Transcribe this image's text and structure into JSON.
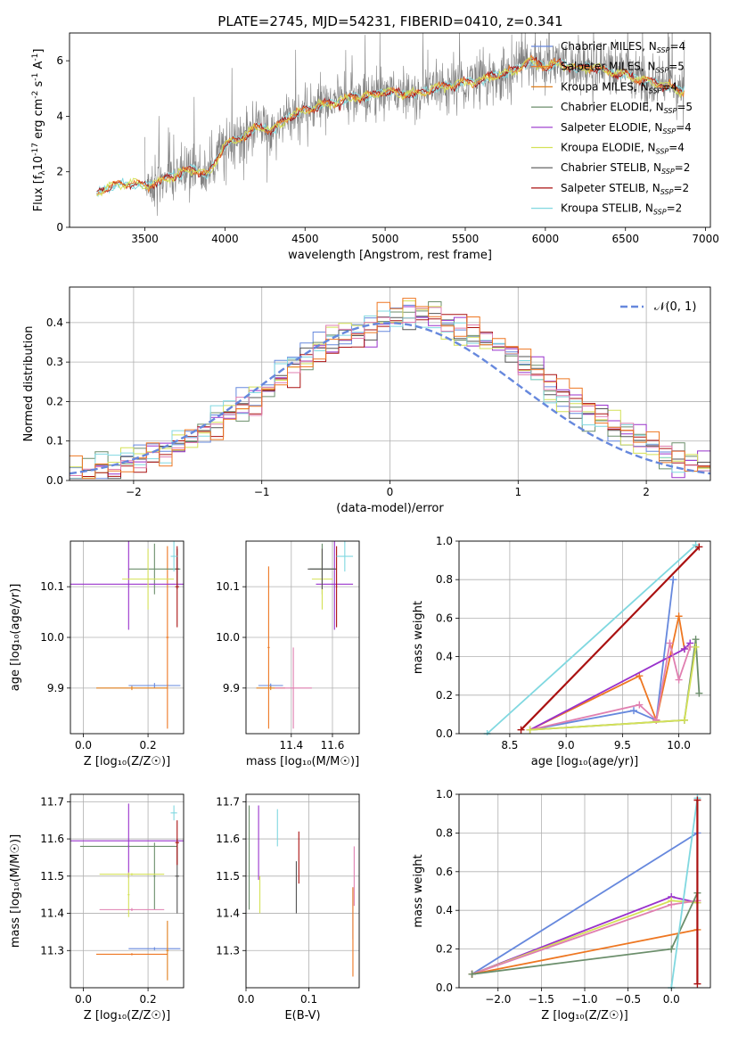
{
  "figure_title": "PLATE=2745, MJD=54231, FIBERID=0410, z=0.341",
  "series": [
    {
      "name": "Chabrier MILES",
      "color": "#6688dd",
      "n_ssp": "4"
    },
    {
      "name": "Salpeter MILES",
      "color": "#ee7722",
      "n_ssp": "5"
    },
    {
      "name": "Kroupa MILES",
      "color": "#e07f1c",
      "n_ssp": "4"
    },
    {
      "name": "Chabrier ELODIE",
      "color": "#6b8e6b",
      "n_ssp": "5"
    },
    {
      "name": "Salpeter ELODIE",
      "color": "#9932cc",
      "n_ssp": "4"
    },
    {
      "name": "Kroupa ELODIE",
      "color": "#d4e157",
      "n_ssp": "4"
    },
    {
      "name": "Chabrier STELIB",
      "color": "#555555",
      "n_ssp": "2"
    },
    {
      "name": "Salpeter STELIB",
      "color": "#aa1111",
      "n_ssp": "2"
    },
    {
      "name": "Kroupa STELIB",
      "color": "#80d8e0",
      "n_ssp": "2"
    }
  ],
  "chart_data": [
    {
      "id": "spectrum",
      "type": "line",
      "title": "PLATE=2745, MJD=54231, FIBERID=0410, z=0.341",
      "xlabel": "wavelength [Angstrom, rest frame]",
      "ylabel_main": "Flux [f",
      "ylabel_sub": "λ",
      "ylabel_tail": "10",
      "ylabel_sup1": "-17",
      "ylabel_mid": " erg cm",
      "ylabel_sup2": "-2",
      "ylabel_mid2": " s",
      "ylabel_sup3": "-1",
      "ylabel_mid3": " A",
      "ylabel_sup4": "-1",
      "ylabel_end": "]",
      "xlim": [
        3030,
        7030
      ],
      "ylim": [
        0,
        7
      ],
      "xticks": [
        3500,
        4000,
        4500,
        5000,
        5500,
        6000,
        6500,
        7000
      ],
      "yticks": [
        0,
        2,
        4,
        6
      ],
      "legend": "top-right",
      "legend_entry_prefix": "N",
      "legend_entry_sub": "SSP",
      "continuum": [
        [
          3200,
          1.2
        ],
        [
          3250,
          1.4
        ],
        [
          3300,
          1.5
        ],
        [
          3400,
          1.6
        ],
        [
          3500,
          1.5
        ],
        [
          3600,
          1.65
        ],
        [
          3700,
          1.9
        ],
        [
          3800,
          2.1
        ],
        [
          3900,
          1.9
        ],
        [
          4000,
          3.0
        ],
        [
          4100,
          3.2
        ],
        [
          4200,
          3.6
        ],
        [
          4300,
          3.5
        ],
        [
          4400,
          4.0
        ],
        [
          4500,
          4.2
        ],
        [
          4600,
          4.4
        ],
        [
          4700,
          4.5
        ],
        [
          4800,
          4.7
        ],
        [
          4900,
          4.7
        ],
        [
          5000,
          4.9
        ],
        [
          5100,
          4.8
        ],
        [
          5200,
          4.8
        ],
        [
          5300,
          5.0
        ],
        [
          5400,
          5.1
        ],
        [
          5500,
          5.2
        ],
        [
          5600,
          5.3
        ],
        [
          5700,
          5.5
        ],
        [
          5800,
          5.6
        ],
        [
          5900,
          6.0
        ],
        [
          6000,
          5.8
        ],
        [
          6100,
          5.9
        ],
        [
          6200,
          5.7
        ],
        [
          6300,
          5.8
        ],
        [
          6400,
          5.6
        ],
        [
          6500,
          5.5
        ],
        [
          6600,
          5.3
        ],
        [
          6700,
          5.2
        ],
        [
          6800,
          5.0
        ],
        [
          6870,
          4.9
        ]
      ],
      "observed_range": [
        3500,
        6870
      ]
    },
    {
      "id": "residual-hist",
      "type": "line",
      "xlabel": "(data-model)/error",
      "ylabel": "Normed distribution",
      "xlim": [
        -2.5,
        2.5
      ],
      "ylim": [
        0,
        0.49
      ],
      "xticks": [
        -2,
        -1,
        0,
        1,
        2
      ],
      "yticks": [
        0.0,
        0.1,
        0.2,
        0.3,
        0.4
      ],
      "grid": true,
      "legend": "top-right",
      "reference": {
        "name": "𝒩(0, 1)",
        "mean": 0,
        "sigma": 1,
        "color": "#6688dd"
      },
      "bin_width": 0.1
    },
    {
      "id": "age-vs-Z",
      "type": "scatter",
      "xlabel": "Z [log₁₀(Z/Z☉)]",
      "ylabel": "age  [log₁₀(age/yr)]",
      "xlim": [
        -0.04,
        0.31
      ],
      "ylim": [
        9.81,
        10.19
      ],
      "xticks": [
        0.0,
        0.2
      ],
      "yticks": [
        9.9,
        10.0,
        10.1
      ],
      "grid": true,
      "points": [
        {
          "series": 0,
          "x": 0.22,
          "xerr": 0.08,
          "y": 9.905,
          "yerr": 0.005
        },
        {
          "series": 1,
          "x": 0.26,
          "xerr": 0.004,
          "y": 10.0,
          "yerr": 0.18
        },
        {
          "series": 2,
          "x": 0.15,
          "xerr": 0.11,
          "y": 9.9,
          "yerr": 0.004
        },
        {
          "series": 3,
          "x": 0.22,
          "xerr": 0.08,
          "y": 10.135,
          "yerr": 0.05
        },
        {
          "series": 4,
          "x": 0.14,
          "xerr": 0.18,
          "y": 10.105,
          "yerr": 0.09
        },
        {
          "series": 5,
          "x": 0.2,
          "xerr": 0.08,
          "y": 10.115,
          "yerr": 0.06
        },
        {
          "series": 6,
          "x": 0.29,
          "xerr": 0.006,
          "y": 10.135,
          "yerr": 0.04
        },
        {
          "series": 7,
          "x": 0.29,
          "xerr": 0.006,
          "y": 10.1,
          "yerr": 0.08
        },
        {
          "series": 8,
          "x": 0.28,
          "xerr": 0.01,
          "y": 10.16,
          "yerr": 0.03
        }
      ]
    },
    {
      "id": "age-vs-mass",
      "type": "scatter",
      "xlabel": "mass [log₁₀(M/M☉)]",
      "xlim": [
        11.18,
        11.73
      ],
      "ylim": [
        9.81,
        10.19
      ],
      "xticks": [
        11.4,
        11.6
      ],
      "yticks": [
        9.9,
        10.0,
        10.1
      ],
      "grid": true,
      "points": [
        {
          "series": 0,
          "x": 11.3,
          "xerr": 0.06,
          "y": 9.905,
          "yerr": 0.004
        },
        {
          "series": 1,
          "x": 11.29,
          "xerr": 0.005,
          "y": 9.98,
          "yerr": 0.16
        },
        {
          "series": 2,
          "x": 11.3,
          "xerr": 0.07,
          "y": 9.9,
          "yerr": 0.004
        },
        {
          "series": 3,
          "x": 11.55,
          "xerr": 0.06,
          "y": 10.135,
          "yerr": 0.05
        },
        {
          "series": 4,
          "x": 11.61,
          "xerr": 0.09,
          "y": 10.105,
          "yerr": 0.09
        },
        {
          "series": 5,
          "x": 11.55,
          "xerr": 0.05,
          "y": 10.115,
          "yerr": 0.06
        },
        {
          "series": 6,
          "x": 11.55,
          "xerr": 0.07,
          "y": 10.135,
          "yerr": 0.04
        },
        {
          "series": 7,
          "x": 11.62,
          "xerr": 0.003,
          "y": 10.1,
          "yerr": 0.08
        },
        {
          "series": 8,
          "x": 11.66,
          "xerr": 0.04,
          "y": 10.16,
          "yerr": 0.03
        },
        {
          "series": 9,
          "x": 11.41,
          "xerr": 0.09,
          "y": 9.9,
          "yerr": 0.08
        }
      ]
    },
    {
      "id": "weight-vs-age",
      "type": "line",
      "xlabel": "age  [log₁₀(age/yr)]",
      "ylabel": "mass weight",
      "xlim": [
        8.05,
        10.28
      ],
      "ylim": [
        0,
        1.0
      ],
      "xticks": [
        8.5,
        9.0,
        9.5,
        10.0
      ],
      "yticks": [
        0.0,
        0.2,
        0.4,
        0.6,
        0.8,
        1.0
      ],
      "grid": true,
      "lines": [
        {
          "series": 8,
          "x": [
            8.3,
            10.15
          ],
          "y": [
            0.0,
            0.98
          ]
        },
        {
          "series": 7,
          "x": [
            8.6,
            10.18
          ],
          "y": [
            0.02,
            0.97
          ]
        },
        {
          "series": 0,
          "x": [
            8.68,
            9.6,
            9.8,
            9.95
          ],
          "y": [
            0.02,
            0.12,
            0.07,
            0.8
          ]
        },
        {
          "series": 1,
          "x": [
            8.68,
            9.65,
            9.8,
            10.0,
            10.05
          ],
          "y": [
            0.02,
            0.3,
            0.07,
            0.61,
            0.44
          ]
        },
        {
          "series": 4,
          "x": [
            8.68,
            10.05,
            10.1
          ],
          "y": [
            0.02,
            0.44,
            0.47
          ]
        },
        {
          "series": 3,
          "x": [
            8.68,
            10.05,
            10.15,
            10.18
          ],
          "y": [
            0.02,
            0.07,
            0.49,
            0.21
          ]
        },
        {
          "series": 9,
          "x": [
            8.68,
            9.65,
            9.8,
            9.92,
            10.0,
            10.1
          ],
          "y": [
            0.02,
            0.15,
            0.07,
            0.47,
            0.28,
            0.45
          ]
        },
        {
          "series": 5,
          "x": [
            8.68,
            10.05,
            10.15
          ],
          "y": [
            0.02,
            0.07,
            0.45
          ]
        }
      ]
    },
    {
      "id": "mass-vs-Z",
      "type": "scatter",
      "xlabel": "Z [log₁₀(Z/Z☉)]",
      "ylabel": "mass [log₁₀(M/M☉)]",
      "xlim": [
        -0.04,
        0.31
      ],
      "ylim": [
        11.2,
        11.72
      ],
      "xticks": [
        0.0,
        0.2
      ],
      "yticks": [
        11.3,
        11.4,
        11.5,
        11.6,
        11.7
      ],
      "grid": true,
      "points": [
        {
          "series": 0,
          "x": 0.22,
          "xerr": 0.08,
          "y": 11.305,
          "yerr": 0.004
        },
        {
          "series": 1,
          "x": 0.15,
          "xerr": 0.11,
          "y": 11.29,
          "yerr": 0.003
        },
        {
          "series": 2,
          "x": 0.26,
          "xerr": 0.004,
          "y": 11.3,
          "yerr": 0.08
        },
        {
          "series": 3,
          "x": 0.14,
          "xerr": 0.15,
          "y": 11.58,
          "yerr": 0.003
        },
        {
          "series": 3,
          "x": 0.22,
          "xerr": 0.003,
          "y": 11.5,
          "yerr": 0.09
        },
        {
          "series": 4,
          "x": 0.14,
          "xerr": 0.18,
          "y": 11.595,
          "yerr": 0.1
        },
        {
          "series": 5,
          "x": 0.15,
          "xerr": 0.1,
          "y": 11.505,
          "yerr": 0.003
        },
        {
          "series": 5,
          "x": 0.14,
          "xerr": 0.003,
          "y": 11.45,
          "yerr": 0.06
        },
        {
          "series": 6,
          "x": 0.29,
          "xerr": 0.006,
          "y": 11.5,
          "yerr": 0.1
        },
        {
          "series": 7,
          "x": 0.29,
          "xerr": 0.006,
          "y": 11.59,
          "yerr": 0.06
        },
        {
          "series": 8,
          "x": 0.28,
          "xerr": 0.01,
          "y": 11.67,
          "yerr": 0.02
        },
        {
          "series": 9,
          "x": 0.15,
          "xerr": 0.1,
          "y": 11.41,
          "yerr": 0.004
        }
      ]
    },
    {
      "id": "mass-vs-ebv",
      "type": "scatter",
      "xlabel": "E(B-V)",
      "xlim": [
        0.0,
        0.18
      ],
      "ylim": [
        11.2,
        11.72
      ],
      "xticks": [
        0.0,
        0.1
      ],
      "yticks": [
        11.3,
        11.4,
        11.5,
        11.6,
        11.7
      ],
      "grid": true,
      "points": [
        {
          "series": 0,
          "x": 0.17,
          "y": 11.4,
          "yerr": 0.07
        },
        {
          "series": 1,
          "x": 0.17,
          "y": 11.35,
          "yerr": 0.12
        },
        {
          "series": 3,
          "x": 0.005,
          "y": 11.55,
          "yerr": 0.14
        },
        {
          "series": 4,
          "x": 0.02,
          "y": 11.59,
          "yerr": 0.1
        },
        {
          "series": 5,
          "x": 0.022,
          "y": 11.45,
          "yerr": 0.05
        },
        {
          "series": 6,
          "x": 0.08,
          "y": 11.47,
          "yerr": 0.07
        },
        {
          "series": 7,
          "x": 0.084,
          "y": 11.55,
          "yerr": 0.07
        },
        {
          "series": 8,
          "x": 0.05,
          "y": 11.63,
          "yerr": 0.05
        },
        {
          "series": 9,
          "x": 0.172,
          "y": 11.5,
          "yerr": 0.08
        }
      ]
    },
    {
      "id": "weight-vs-Z",
      "type": "line",
      "xlabel": "Z [log₁₀(Z/Z☉)]",
      "ylabel": "mass weight",
      "xlim": [
        -2.45,
        0.45
      ],
      "ylim": [
        0,
        1.0
      ],
      "xticks": [
        -2.0,
        -1.5,
        -1.0,
        -0.5,
        0.0
      ],
      "yticks": [
        0.0,
        0.2,
        0.4,
        0.6,
        0.8,
        1.0
      ],
      "grid": true,
      "lines": [
        {
          "series": 0,
          "x": [
            -2.3,
            0.3
          ],
          "y": [
            0.07,
            0.8
          ]
        },
        {
          "series": 4,
          "x": [
            -2.3,
            0.0,
            0.3
          ],
          "y": [
            0.07,
            0.47,
            0.44
          ]
        },
        {
          "series": 5,
          "x": [
            -2.3,
            0.0,
            0.3
          ],
          "y": [
            0.07,
            0.45,
            0.44
          ]
        },
        {
          "series": 9,
          "x": [
            -2.3,
            0.0,
            0.3
          ],
          "y": [
            0.07,
            0.43,
            0.45
          ]
        },
        {
          "series": 1,
          "x": [
            -2.3,
            0.3
          ],
          "y": [
            0.07,
            0.3
          ]
        },
        {
          "series": 3,
          "x": [
            -2.3,
            0.0,
            0.3
          ],
          "y": [
            0.07,
            0.2,
            0.49
          ]
        },
        {
          "series": 8,
          "x": [
            0.0,
            0.3
          ],
          "y": [
            0.0,
            0.98
          ]
        },
        {
          "series": 7,
          "x": [
            0.3,
            0.3
          ],
          "y": [
            0.02,
            0.97
          ]
        }
      ]
    }
  ]
}
